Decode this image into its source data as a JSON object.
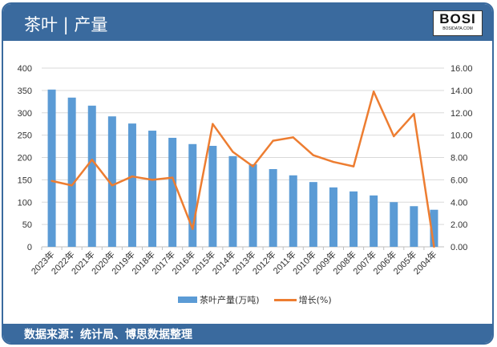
{
  "header": {
    "title": "茶叶 | 产量",
    "logo_text": "BOSI",
    "logo_sub": "BOSIDATA.COM"
  },
  "footer": {
    "source": "数据来源：统计局、博思数据整理"
  },
  "colors": {
    "frame": "#3a6a9e",
    "bar": "#5b9bd5",
    "line": "#ed7d31"
  },
  "chart_data": {
    "type": "bar+line",
    "categories": [
      "2023年",
      "2022年",
      "2021年",
      "2020年",
      "2019年",
      "2018年",
      "2017年",
      "2016年",
      "2015年",
      "2014年",
      "2013年",
      "2012年",
      "2011年",
      "2010年",
      "2009年",
      "2008年",
      "2007年",
      "2006年",
      "2005年",
      "2004年"
    ],
    "series": [
      {
        "name": "茶叶产量(万吨)",
        "type": "bar",
        "axis": "left",
        "values": [
          352,
          334,
          316,
          292,
          276,
          260,
          244,
          230,
          226,
          203,
          185,
          174,
          160,
          145,
          133,
          124,
          115,
          100,
          91,
          83
        ]
      },
      {
        "name": "增长(%)",
        "type": "line",
        "axis": "right",
        "values": [
          5.9,
          5.5,
          7.8,
          5.5,
          6.3,
          6.0,
          6.2,
          1.6,
          11.0,
          8.5,
          7.2,
          9.5,
          9.8,
          8.2,
          7.6,
          7.2,
          13.9,
          9.9,
          11.9,
          0.0
        ]
      }
    ],
    "y_left": {
      "range": [
        0,
        400
      ],
      "ticks": [
        "0",
        "50",
        "100",
        "150",
        "200",
        "250",
        "300",
        "350",
        "400"
      ]
    },
    "y_right": {
      "range": [
        0,
        16
      ],
      "ticks": [
        "0.00",
        "2.00",
        "4.00",
        "6.00",
        "8.00",
        "10.00",
        "12.00",
        "14.00",
        "16.00"
      ]
    },
    "grid": true,
    "legend": "bottom"
  }
}
